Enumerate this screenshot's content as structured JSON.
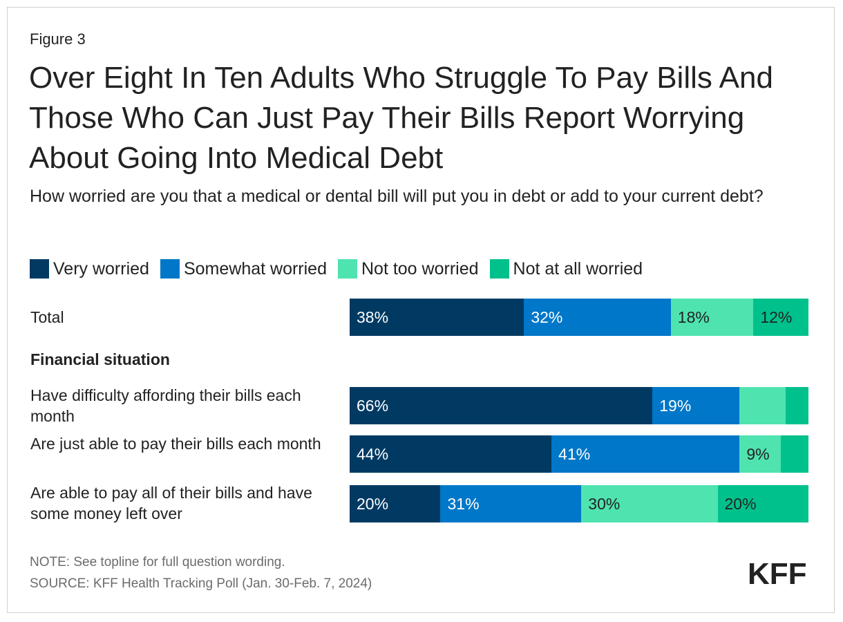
{
  "figure_label": "Figure 3",
  "title": "Over Eight In Ten Adults Who Struggle To Pay Bills And Those Who Can Just Pay Their Bills Report Worrying About Going Into Medical Debt",
  "subtitle": "How worried are you that a medical or dental bill will put you in debt or add to your current debt?",
  "legend": [
    {
      "label": "Very worried",
      "color": "#003a63"
    },
    {
      "label": "Somewhat worried",
      "color": "#0077c8"
    },
    {
      "label": "Not too worried",
      "color": "#4fe3b0"
    },
    {
      "label": "Not at all worried",
      "color": "#00c18c"
    }
  ],
  "group_heading": "Financial situation",
  "chart_data": {
    "type": "bar",
    "orientation": "horizontal",
    "stacked": true,
    "unit": "%",
    "categories": [
      "Total",
      "Have difficulty affording their bills each month",
      "Are just able to pay their bills each month",
      "Are able to pay all of their bills and have some money left over"
    ],
    "series": [
      {
        "name": "Very worried",
        "values": [
          38,
          66,
          44,
          20
        ],
        "labels": [
          "38%",
          "66%",
          "44%",
          "20%"
        ]
      },
      {
        "name": "Somewhat worried",
        "values": [
          32,
          19,
          41,
          31
        ],
        "labels": [
          "32%",
          "19%",
          "41%",
          "31%"
        ]
      },
      {
        "name": "Not too worried",
        "values": [
          18,
          10,
          9,
          30
        ],
        "labels": [
          "18%",
          "",
          "9%",
          "30%"
        ]
      },
      {
        "name": "Not at all worried",
        "values": [
          12,
          5,
          6,
          20
        ],
        "labels": [
          "12%",
          "",
          "",
          "20%"
        ]
      }
    ],
    "xlim": [
      0,
      100
    ]
  },
  "note": "NOTE: See topline for full question wording.",
  "source": "SOURCE: KFF Health Tracking Poll (Jan. 30-Feb. 7, 2024)",
  "logo_text": "KFF"
}
